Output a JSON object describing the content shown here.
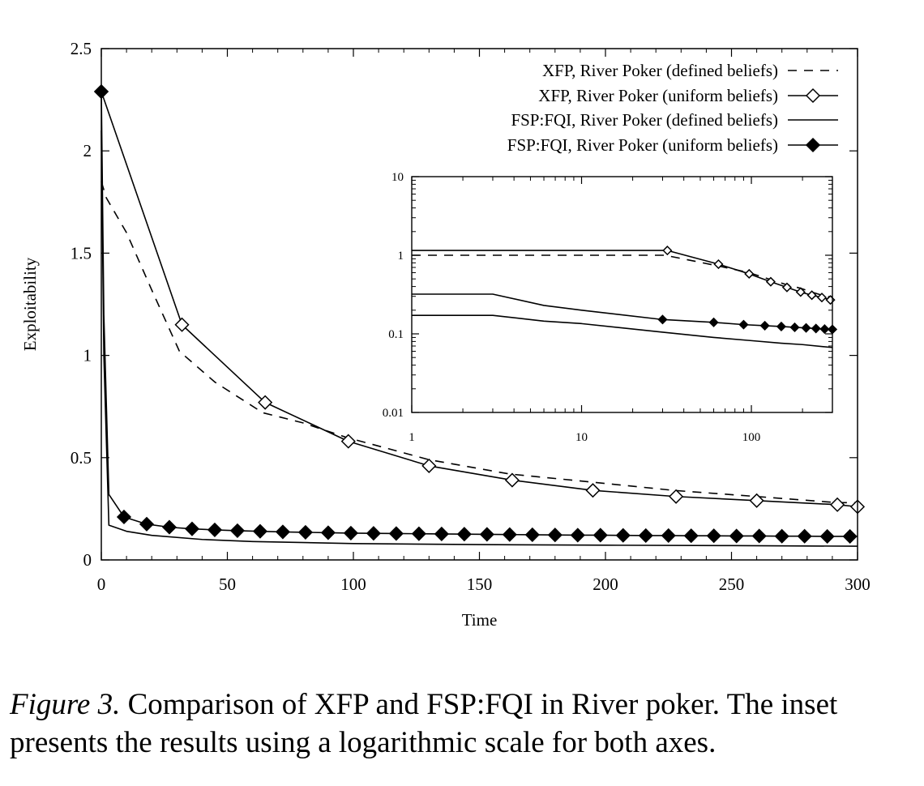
{
  "chart_data": [
    {
      "id": "main",
      "type": "line",
      "xlabel": "Time",
      "ylabel": "Exploitability",
      "xlim": [
        0,
        300
      ],
      "ylim": [
        0,
        2.5
      ],
      "xticks": [
        0,
        50,
        100,
        150,
        200,
        250,
        300
      ],
      "yticks": [
        0,
        0.5,
        1,
        1.5,
        2,
        2.5
      ],
      "xtick_labels": [
        "0",
        "50",
        "100",
        "150",
        "200",
        "250",
        "300"
      ],
      "ytick_labels": [
        "0",
        "0.5",
        "1",
        "1.5",
        "2",
        "2.5"
      ],
      "grid": false,
      "legend_position": "top-right",
      "series": [
        {
          "name": "XFP, River Poker (defined beliefs)",
          "style": "dashed",
          "marker": "none",
          "x": [
            0,
            2,
            10,
            20,
            31,
            45,
            64,
            80,
            97,
            130,
            162,
            195,
            227,
            260,
            292,
            300
          ],
          "y": [
            1.85,
            1.77,
            1.6,
            1.32,
            1.02,
            0.87,
            0.72,
            0.67,
            0.6,
            0.49,
            0.42,
            0.38,
            0.34,
            0.31,
            0.28,
            0.28
          ]
        },
        {
          "name": "XFP, River Poker (uniform beliefs)",
          "style": "solid",
          "marker": "open-diamond",
          "x": [
            0,
            32,
            65,
            98,
            130,
            163,
            195,
            228,
            260,
            292,
            300
          ],
          "y": [
            2.29,
            1.15,
            0.77,
            0.58,
            0.46,
            0.39,
            0.34,
            0.31,
            0.29,
            0.27,
            0.26
          ]
        },
        {
          "name": "FSP:FQI, River Poker (defined beliefs)",
          "style": "solid",
          "marker": "none",
          "x": [
            0,
            1,
            3,
            10,
            20,
            40,
            60,
            100,
            150,
            200,
            250,
            300
          ],
          "y": [
            2.1,
            1.0,
            0.17,
            0.14,
            0.12,
            0.1,
            0.09,
            0.08,
            0.075,
            0.072,
            0.07,
            0.067
          ]
        },
        {
          "name": "FSP:FQI, River Poker (uniform beliefs)",
          "style": "solid",
          "marker": "filled-diamond",
          "x": [
            0,
            1,
            3,
            9,
            18,
            27,
            36,
            45,
            54,
            63,
            72,
            81,
            90,
            99,
            108,
            117,
            126,
            135,
            144,
            153,
            162,
            171,
            180,
            189,
            198,
            207,
            216,
            225,
            234,
            243,
            252,
            261,
            270,
            279,
            288,
            297,
            300
          ],
          "y": [
            2.29,
            1.2,
            0.32,
            0.21,
            0.175,
            0.16,
            0.152,
            0.147,
            0.143,
            0.14,
            0.137,
            0.135,
            0.133,
            0.131,
            0.13,
            0.129,
            0.128,
            0.127,
            0.126,
            0.125,
            0.124,
            0.123,
            0.122,
            0.121,
            0.121,
            0.12,
            0.119,
            0.119,
            0.118,
            0.118,
            0.117,
            0.117,
            0.116,
            0.116,
            0.115,
            0.115,
            0.115
          ],
          "marker_x": [
            0,
            9,
            18,
            27,
            36,
            45,
            54,
            63,
            72,
            81,
            90,
            99,
            108,
            117,
            126,
            135,
            144,
            153,
            162,
            171,
            180,
            189,
            198,
            207,
            216,
            225,
            234,
            243,
            252,
            261,
            270,
            279,
            288,
            297
          ]
        }
      ]
    },
    {
      "id": "inset",
      "type": "line",
      "xscale": "log",
      "yscale": "log",
      "xlim": [
        1,
        300
      ],
      "ylim": [
        0.01,
        10
      ],
      "xticks": [
        1,
        10,
        100
      ],
      "yticks": [
        0.01,
        0.1,
        1,
        10
      ],
      "xtick_labels": [
        "1",
        "10",
        "100"
      ],
      "ytick_labels": [
        "0.01",
        "0.1",
        "1",
        "10"
      ],
      "grid": false,
      "series": [
        {
          "style": "dashed",
          "marker": "none",
          "x": [
            1,
            3,
            31,
            64,
            97,
            130,
            162,
            195,
            227,
            260,
            300
          ],
          "y": [
            1.0,
            1.0,
            1.0,
            0.73,
            0.6,
            0.49,
            0.42,
            0.38,
            0.34,
            0.31,
            0.28
          ]
        },
        {
          "style": "solid",
          "marker": "open-diamond",
          "x": [
            1,
            31,
            32,
            64,
            97,
            130,
            162,
            195,
            227,
            260,
            292,
            300
          ],
          "y": [
            1.15,
            1.15,
            1.15,
            0.77,
            0.58,
            0.46,
            0.39,
            0.34,
            0.31,
            0.29,
            0.27,
            0.26
          ],
          "marker_x": [
            32,
            64,
            97,
            130,
            162,
            195,
            227,
            260,
            292
          ]
        },
        {
          "style": "solid",
          "marker": "none",
          "x": [
            1,
            3,
            6,
            10,
            30,
            60,
            100,
            150,
            200,
            300
          ],
          "y": [
            0.172,
            0.172,
            0.145,
            0.135,
            0.105,
            0.09,
            0.082,
            0.076,
            0.073,
            0.067
          ]
        },
        {
          "style": "solid",
          "marker": "filled-diamond",
          "x": [
            1,
            3,
            6,
            10,
            30,
            60,
            90,
            120,
            150,
            180,
            210,
            240,
            270,
            300
          ],
          "y": [
            0.32,
            0.32,
            0.23,
            0.2,
            0.152,
            0.14,
            0.131,
            0.127,
            0.124,
            0.121,
            0.119,
            0.117,
            0.115,
            0.114
          ],
          "marker_x": [
            30,
            60,
            90,
            120,
            150,
            180,
            210,
            240,
            270,
            300
          ]
        }
      ]
    }
  ],
  "caption": {
    "label": "Figure 3.",
    "text": " Comparison of XFP and FSP:FQI in River poker.  The inset presents the results using a logarithmic scale for both axes."
  }
}
